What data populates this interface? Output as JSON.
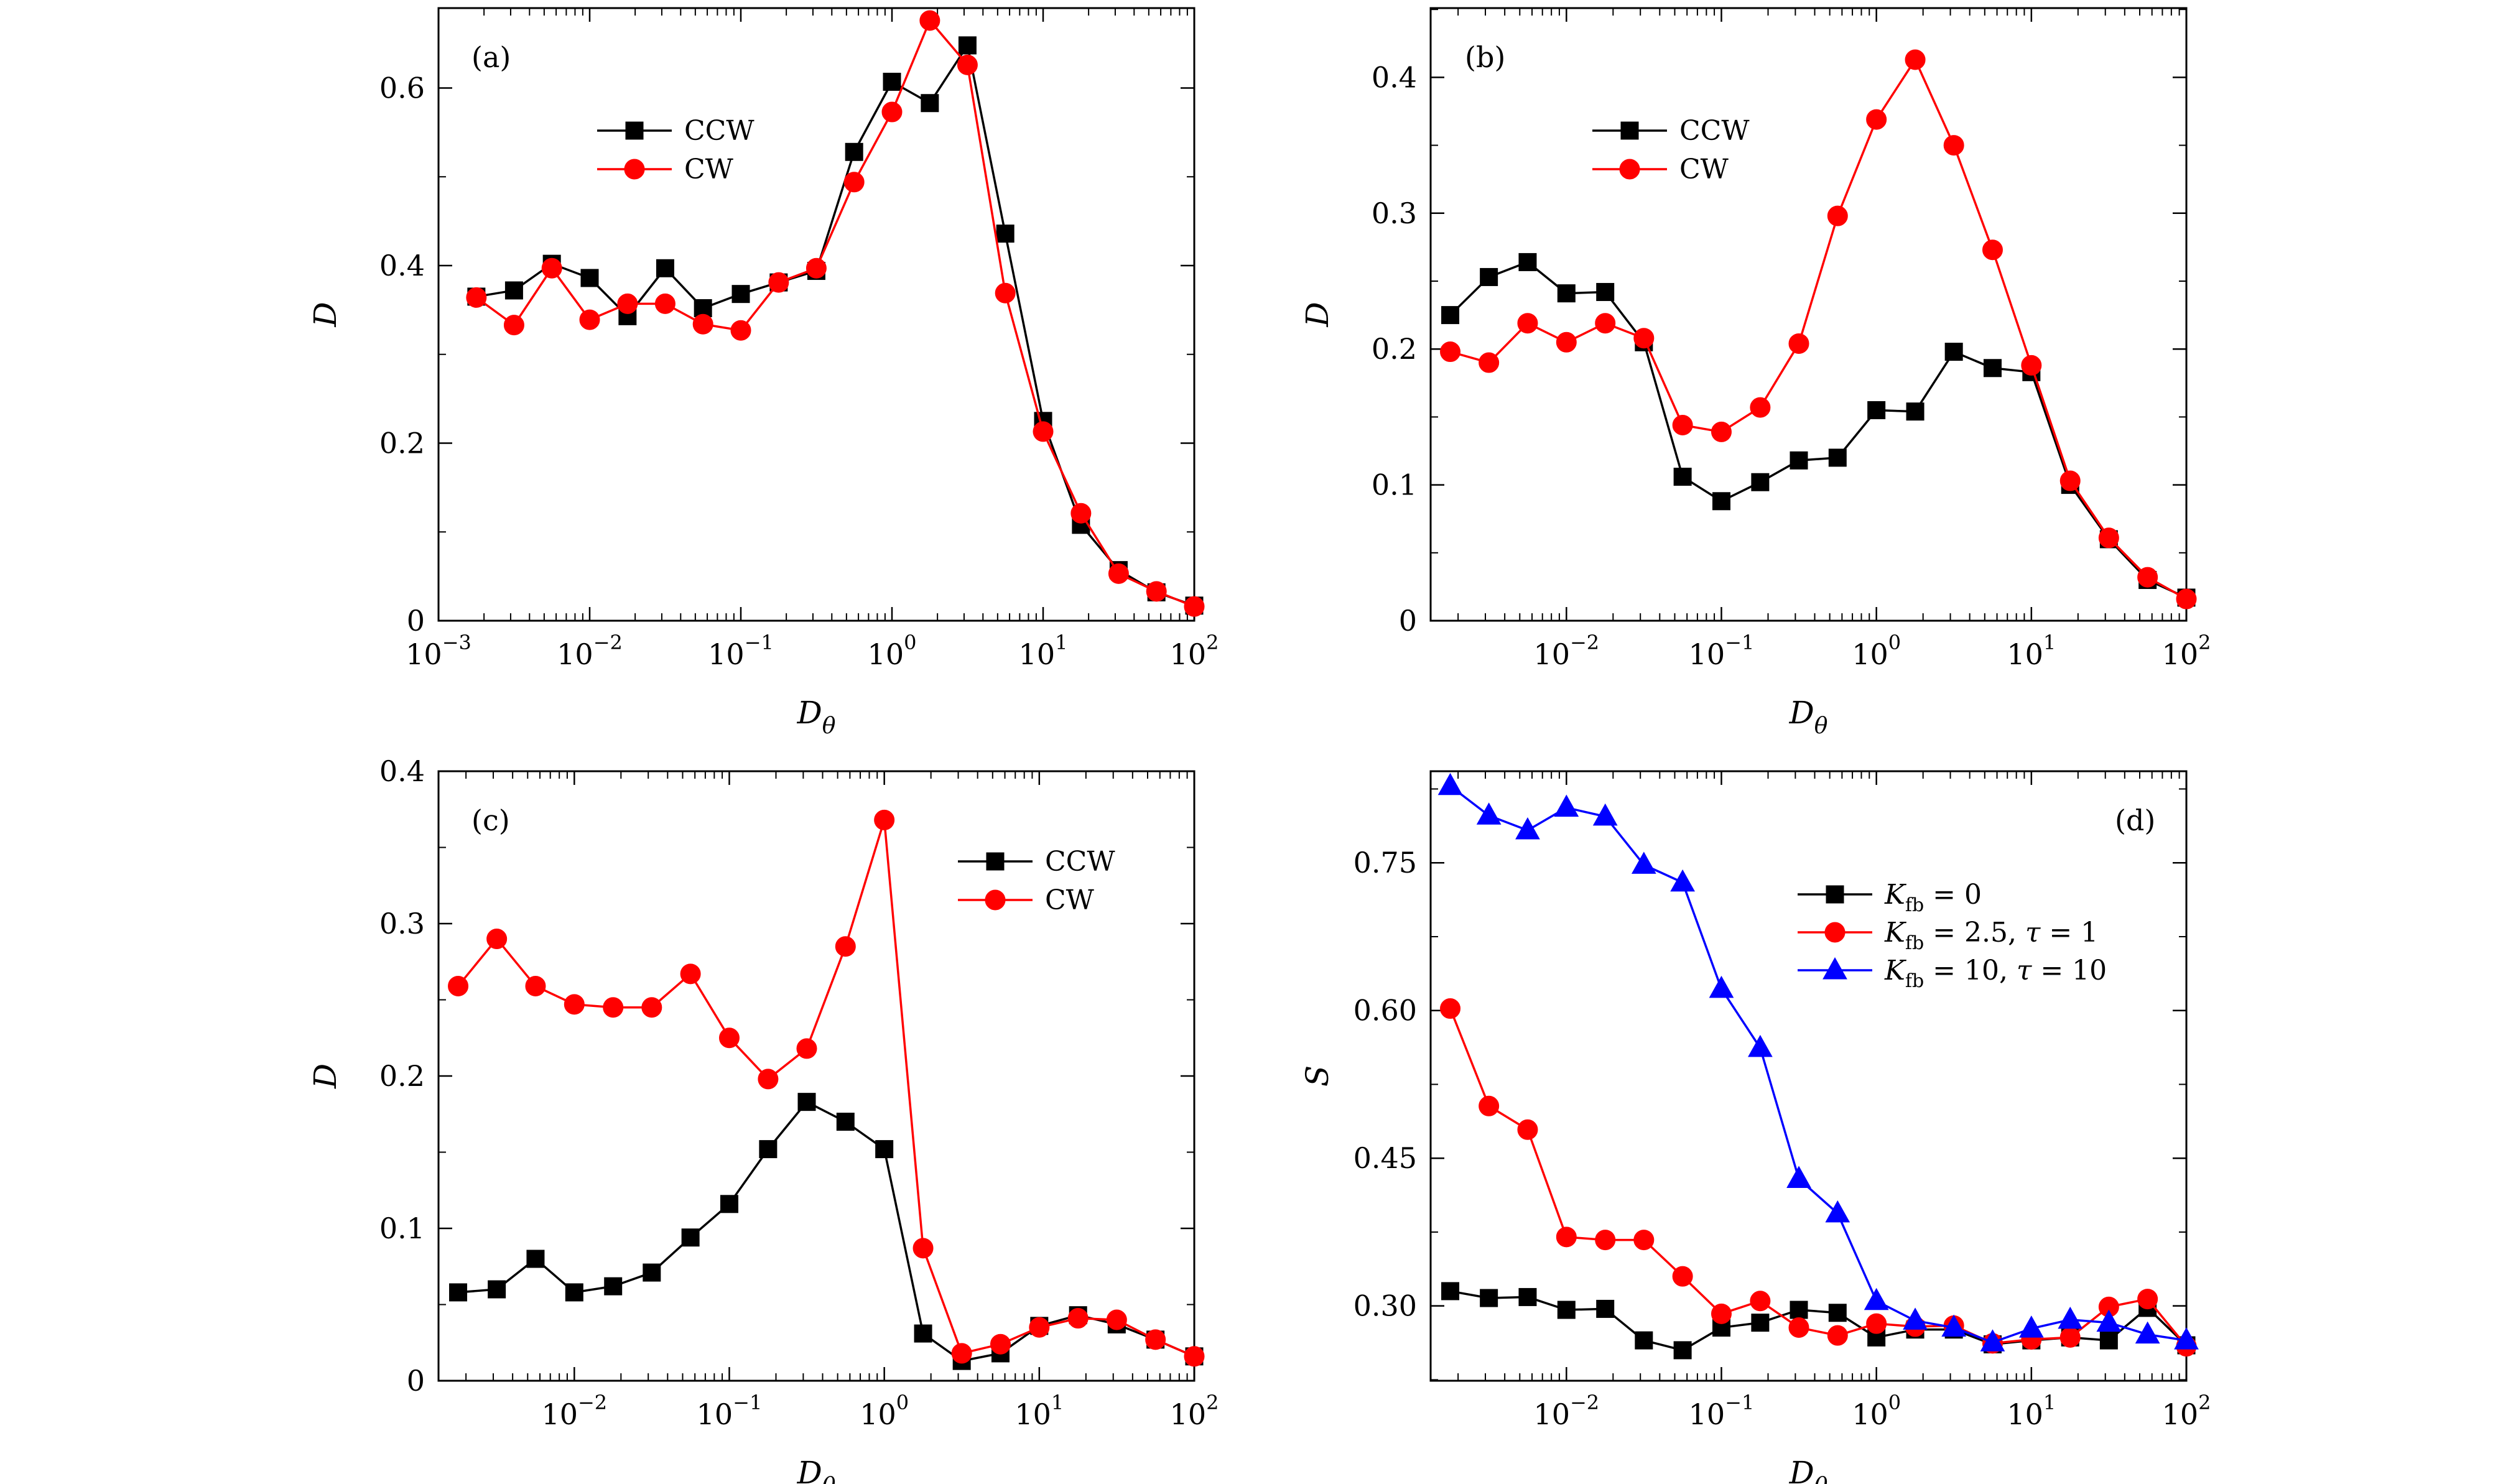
{
  "colors": {
    "ccw": "#000000",
    "cw": "#ff0000",
    "tri": "#0000ff"
  },
  "chart_data": [
    {
      "panel": "(a)",
      "type": "line",
      "xscale": "log",
      "xlim": [
        0.001,
        100
      ],
      "ylim": [
        0,
        0.69
      ],
      "xticks": [
        0.001,
        0.01,
        0.1,
        1,
        10,
        100
      ],
      "xtick_labels": [
        [
          "10",
          "−3"
        ],
        [
          "10",
          "−2"
        ],
        [
          "10",
          "−1"
        ],
        [
          "10",
          "0"
        ],
        [
          "10",
          "1"
        ],
        [
          "10",
          "2"
        ]
      ],
      "yticks": [
        0,
        0.2,
        0.4,
        0.6
      ],
      "ytick_labels": [
        "0",
        "0.2",
        "0.4",
        "0.6"
      ],
      "xlabel": "D",
      "xlabel_sub": "θ",
      "ylabel": "D",
      "legend": {
        "entries": [
          "CCW",
          "CW"
        ]
      },
      "series": [
        {
          "name": "CCW",
          "color": "#000000",
          "marker": "square",
          "x": [
            0.00178,
            0.00316,
            0.00562,
            0.01,
            0.0178,
            0.0316,
            0.0562,
            0.1,
            0.178,
            0.316,
            0.562,
            1,
            1.78,
            3.16,
            5.62,
            10,
            17.8,
            31.6,
            56.2,
            100
          ],
          "y": [
            0.365,
            0.372,
            0.402,
            0.386,
            0.343,
            0.397,
            0.352,
            0.368,
            0.381,
            0.394,
            0.528,
            0.607,
            0.583,
            0.648,
            0.436,
            0.225,
            0.108,
            0.057,
            0.032,
            0.017
          ]
        },
        {
          "name": "CW",
          "color": "#ff0000",
          "marker": "circle",
          "x": [
            0.00178,
            0.00316,
            0.00562,
            0.01,
            0.0178,
            0.0316,
            0.0562,
            0.1,
            0.178,
            0.316,
            0.562,
            1,
            1.78,
            3.16,
            5.62,
            10,
            17.8,
            31.6,
            56.2,
            100
          ],
          "y": [
            0.364,
            0.333,
            0.397,
            0.339,
            0.357,
            0.357,
            0.334,
            0.327,
            0.381,
            0.397,
            0.494,
            0.573,
            0.676,
            0.626,
            0.369,
            0.213,
            0.121,
            0.053,
            0.033,
            0.016
          ]
        }
      ]
    },
    {
      "panel": "(b)",
      "type": "line",
      "xscale": "log",
      "xlim": [
        0.00133,
        100
      ],
      "ylim": [
        0,
        0.451
      ],
      "xticks": [
        0.01,
        0.1,
        1,
        10,
        100
      ],
      "xtick_labels": [
        [
          "10",
          "−2"
        ],
        [
          "10",
          "−1"
        ],
        [
          "10",
          "0"
        ],
        [
          "10",
          "1"
        ],
        [
          "10",
          "2"
        ]
      ],
      "yticks": [
        0,
        0.1,
        0.2,
        0.3,
        0.4
      ],
      "ytick_labels": [
        "0",
        "0.1",
        "0.2",
        "0.3",
        "0.4"
      ],
      "xlabel": "D",
      "xlabel_sub": "θ",
      "ylabel": "D",
      "legend": {
        "entries": [
          "CCW",
          "CW"
        ]
      },
      "series": [
        {
          "name": "CCW",
          "color": "#000000",
          "marker": "square",
          "x": [
            0.00178,
            0.00316,
            0.00562,
            0.01,
            0.0178,
            0.0316,
            0.0562,
            0.1,
            0.178,
            0.316,
            0.562,
            1,
            1.78,
            3.16,
            5.62,
            10,
            17.8,
            31.6,
            56.2,
            100
          ],
          "y": [
            0.225,
            0.253,
            0.264,
            0.241,
            0.242,
            0.205,
            0.106,
            0.088,
            0.102,
            0.118,
            0.12,
            0.155,
            0.154,
            0.198,
            0.186,
            0.183,
            0.1,
            0.06,
            0.03,
            0.017
          ]
        },
        {
          "name": "CW",
          "color": "#ff0000",
          "marker": "circle",
          "x": [
            0.00178,
            0.00316,
            0.00562,
            0.01,
            0.0178,
            0.0316,
            0.0562,
            0.1,
            0.178,
            0.316,
            0.562,
            1,
            1.78,
            3.16,
            5.62,
            10,
            17.8,
            31.6,
            56.2,
            100
          ],
          "y": [
            0.198,
            0.19,
            0.219,
            0.205,
            0.219,
            0.208,
            0.144,
            0.139,
            0.157,
            0.204,
            0.298,
            0.369,
            0.413,
            0.35,
            0.273,
            0.188,
            0.103,
            0.061,
            0.032,
            0.016
          ]
        }
      ]
    },
    {
      "panel": "(c)",
      "type": "line",
      "xscale": "log",
      "xlim": [
        0.00133,
        100
      ],
      "ylim": [
        0,
        0.4
      ],
      "xticks": [
        0.01,
        0.1,
        1,
        10,
        100
      ],
      "xtick_labels": [
        [
          "10",
          "−2"
        ],
        [
          "10",
          "−1"
        ],
        [
          "10",
          "0"
        ],
        [
          "10",
          "1"
        ],
        [
          "10",
          "2"
        ]
      ],
      "yticks": [
        0,
        0.1,
        0.2,
        0.3,
        0.4
      ],
      "ytick_labels": [
        "0",
        "0.1",
        "0.2",
        "0.3",
        "0.4"
      ],
      "xlabel": "D",
      "xlabel_sub": "θ",
      "ylabel": "D",
      "legend": {
        "entries": [
          "CCW",
          "CW"
        ]
      },
      "series": [
        {
          "name": "CCW",
          "color": "#000000",
          "marker": "square",
          "x": [
            0.00178,
            0.00316,
            0.00562,
            0.01,
            0.0178,
            0.0316,
            0.0562,
            0.1,
            0.178,
            0.316,
            0.562,
            1,
            1.78,
            3.16,
            5.62,
            10,
            17.8,
            31.6,
            56.2,
            100
          ],
          "y": [
            0.058,
            0.06,
            0.08,
            0.058,
            0.062,
            0.071,
            0.094,
            0.116,
            0.152,
            0.183,
            0.17,
            0.152,
            0.031,
            0.013,
            0.018,
            0.036,
            0.043,
            0.037,
            0.027,
            0.016
          ]
        },
        {
          "name": "CW",
          "color": "#ff0000",
          "marker": "circle",
          "x": [
            0.00178,
            0.00316,
            0.00562,
            0.01,
            0.0178,
            0.0316,
            0.0562,
            0.1,
            0.178,
            0.316,
            0.562,
            1,
            1.78,
            3.16,
            5.62,
            10,
            17.8,
            31.6,
            56.2,
            100
          ],
          "y": [
            0.259,
            0.29,
            0.259,
            0.247,
            0.245,
            0.245,
            0.267,
            0.225,
            0.198,
            0.218,
            0.285,
            0.368,
            0.087,
            0.018,
            0.024,
            0.035,
            0.041,
            0.04,
            0.027,
            0.016
          ]
        }
      ]
    },
    {
      "panel": "(d)",
      "type": "line",
      "xscale": "log",
      "xlim": [
        0.00133,
        100
      ],
      "ylim": [
        0.224,
        0.843
      ],
      "xticks": [
        0.01,
        0.1,
        1,
        10,
        100
      ],
      "xtick_labels": [
        [
          "10",
          "−2"
        ],
        [
          "10",
          "−1"
        ],
        [
          "10",
          "0"
        ],
        [
          "10",
          "1"
        ],
        [
          "10",
          "2"
        ]
      ],
      "yticks": [
        0.3,
        0.45,
        0.6,
        0.75
      ],
      "ytick_labels": [
        "0.30",
        "0.45",
        "0.60",
        "0.75"
      ],
      "xlabel": "D",
      "xlabel_sub": "θ",
      "ylabel": "S",
      "legend": {
        "entries": [
          {
            "k": "K",
            "sub": "fb",
            "rest": " = 0"
          },
          {
            "k": "K",
            "sub": "fb",
            "rest": " = 2.5, ",
            "tau": "τ",
            "tau_rest": " = 1"
          },
          {
            "k": "K",
            "sub": "fb",
            "rest": " = 10, ",
            "tau": "τ",
            "tau_rest": " = 10"
          }
        ]
      },
      "series": [
        {
          "color": "#000000",
          "marker": "square",
          "x": [
            0.00178,
            0.00316,
            0.00562,
            0.01,
            0.0178,
            0.0316,
            0.0562,
            0.1,
            0.178,
            0.316,
            0.562,
            1,
            1.78,
            3.16,
            5.62,
            10,
            17.8,
            31.6,
            56.2,
            100
          ],
          "y": [
            0.315,
            0.308,
            0.309,
            0.296,
            0.297,
            0.265,
            0.255,
            0.278,
            0.283,
            0.296,
            0.293,
            0.268,
            0.276,
            0.276,
            0.261,
            0.265,
            0.268,
            0.265,
            0.298,
            0.26
          ]
        },
        {
          "color": "#ff0000",
          "marker": "circle",
          "x": [
            0.00178,
            0.00316,
            0.00562,
            0.01,
            0.0178,
            0.0316,
            0.0562,
            0.1,
            0.178,
            0.316,
            0.562,
            1,
            1.78,
            3.16,
            5.62,
            10,
            17.8,
            31.6,
            56.2,
            100
          ],
          "y": [
            0.602,
            0.503,
            0.479,
            0.37,
            0.367,
            0.367,
            0.33,
            0.292,
            0.305,
            0.278,
            0.27,
            0.282,
            0.279,
            0.28,
            0.262,
            0.266,
            0.268,
            0.299,
            0.307,
            0.259
          ]
        },
        {
          "color": "#0000ff",
          "marker": "triangle",
          "x": [
            0.00178,
            0.00316,
            0.00562,
            0.01,
            0.0178,
            0.0316,
            0.0562,
            0.1,
            0.178,
            0.316,
            0.562,
            1,
            1.78,
            3.16,
            5.62,
            10,
            17.8,
            31.6,
            56.2,
            100
          ],
          "y": [
            0.828,
            0.798,
            0.783,
            0.806,
            0.797,
            0.748,
            0.73,
            0.622,
            0.562,
            0.429,
            0.394,
            0.305,
            0.285,
            0.278,
            0.263,
            0.277,
            0.286,
            0.283,
            0.271,
            0.265
          ]
        }
      ]
    }
  ]
}
